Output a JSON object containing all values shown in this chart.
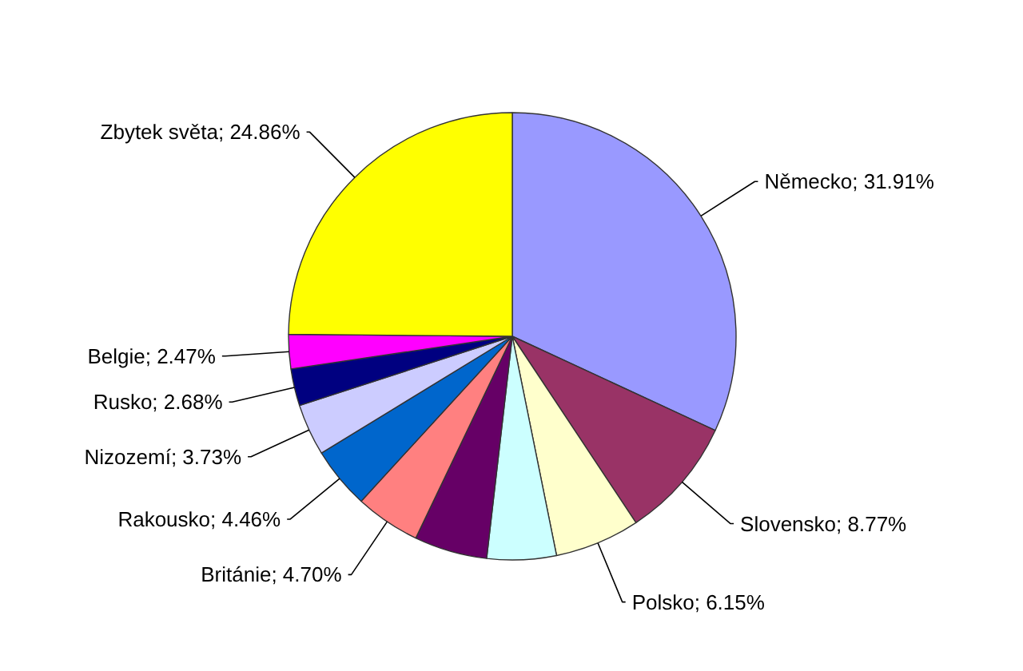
{
  "chart_data": {
    "type": "pie",
    "categories": [
      "Německo",
      "Slovensko",
      "Polsko",
      null,
      null,
      "Británie",
      "Rakousko",
      "Nizozemí",
      "Rusko",
      "Belgie",
      "Zbytek světa"
    ],
    "values": [
      31.91,
      8.77,
      6.15,
      5.0,
      5.27,
      4.7,
      4.46,
      3.73,
      2.68,
      2.47,
      24.86
    ],
    "value_labels": [
      "31.91%",
      "8.77%",
      "6.15%",
      null,
      null,
      "4.70%",
      "4.46%",
      "3.73%",
      "2.68%",
      "2.47%",
      "24.86%"
    ],
    "colors": [
      "#9999ff",
      "#993366",
      "#ffffcc",
      "#ccffff",
      "#660066",
      "#ff8080",
      "#0066cc",
      "#ccccff",
      "#000080",
      "#ff00ff",
      "#ffff00"
    ]
  }
}
